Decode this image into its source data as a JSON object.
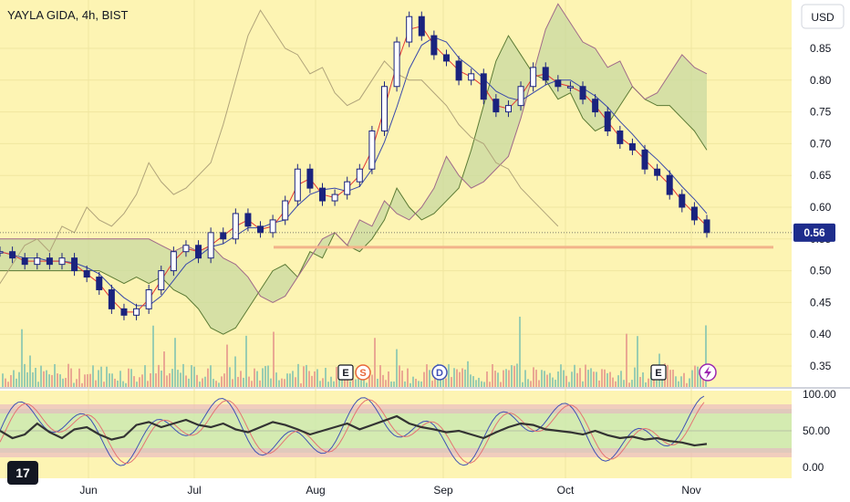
{
  "header": {
    "title": "YAYLA GIDA, 4h, BIST",
    "currency": "USD"
  },
  "colors": {
    "background": "#fdf4b3",
    "candle": "#1a237e",
    "kijun": "#e53935",
    "tenkan": "#3949ab",
    "lagging": "#b0a37a",
    "cloud_fill": "#c8d9a0",
    "cloud_span_a": "#5b7a34",
    "cloud_span_b": "#a06a8a",
    "support": "#f2b38a",
    "price_label": "#1e2d8c",
    "stoch_k": "#3f51b5",
    "stoch_d": "#e57373",
    "rsi": "#333333",
    "band": "#c9e9b0",
    "band_edge": "#e8b3c3"
  },
  "chart_data": [
    {
      "type": "candlestick",
      "title": "YAYLA GIDA, 4h, BIST",
      "currency": "USD",
      "ylim": [
        0.32,
        0.9
      ],
      "y_ticks": [
        "0.85",
        "0.80",
        "0.75",
        "0.70",
        "0.65",
        "0.60",
        "0.55",
        "0.50",
        "0.45",
        "0.40",
        "0.35"
      ],
      "x_ticks": [
        "Jun",
        "Jul",
        "Aug",
        "Sep",
        "Oct",
        "Nov"
      ],
      "last_price": "0.56",
      "support_level": 0.537,
      "close_series": [
        0.53,
        0.52,
        0.51,
        0.52,
        0.51,
        0.52,
        0.5,
        0.49,
        0.47,
        0.44,
        0.43,
        0.44,
        0.47,
        0.5,
        0.53,
        0.54,
        0.52,
        0.56,
        0.55,
        0.59,
        0.57,
        0.56,
        0.58,
        0.61,
        0.66,
        0.63,
        0.61,
        0.62,
        0.64,
        0.66,
        0.72,
        0.79,
        0.86,
        0.9,
        0.87,
        0.84,
        0.83,
        0.8,
        0.81,
        0.77,
        0.75,
        0.76,
        0.79,
        0.82,
        0.8,
        0.79,
        0.79,
        0.77,
        0.75,
        0.72,
        0.7,
        0.69,
        0.66,
        0.65,
        0.62,
        0.6,
        0.58,
        0.56
      ],
      "events": [
        {
          "label": "E",
          "position": "Aug"
        },
        {
          "label": "S",
          "position": "Aug"
        },
        {
          "label": "D",
          "position": "Sep"
        },
        {
          "label": "E",
          "position": "Oct-Nov"
        }
      ]
    },
    {
      "type": "line",
      "title": "",
      "ylim": [
        -10,
        110
      ],
      "y_ticks": [
        "100.00",
        "50.00",
        "0.00"
      ],
      "bands": [
        20,
        80
      ],
      "series": [
        {
          "values": [
            50,
            40,
            45,
            60,
            48,
            40,
            52,
            55,
            45,
            38,
            42,
            58,
            62,
            55,
            60,
            65,
            58,
            55,
            60,
            52,
            48,
            55,
            62,
            58,
            52,
            45,
            50,
            55,
            60,
            52,
            58,
            64,
            70,
            60,
            55,
            52,
            48,
            50,
            45,
            40,
            48,
            55,
            60,
            58,
            52,
            50,
            48,
            45,
            50,
            44,
            40,
            42,
            38,
            40,
            36,
            34,
            30,
            32
          ]
        }
      ]
    }
  ]
}
